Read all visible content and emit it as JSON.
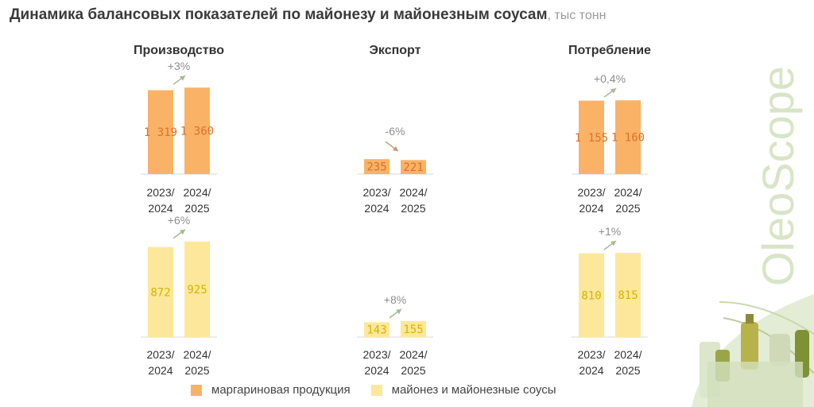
{
  "title": "Динамика балансовых показателей по майонезу и майонезным соусам",
  "title_unit": ", тыс тонн",
  "logo_text": "OleoScope",
  "legend": [
    {
      "label": "маргариновая продукция",
      "color": "#f9b266"
    },
    {
      "label": "майонез и майонезные соусы",
      "color": "#fde79a"
    }
  ],
  "chart_data": [
    {
      "type": "bar",
      "title": "Производство",
      "series": [
        {
          "name": "маргариновая продукция",
          "values": [
            1319,
            1360
          ],
          "labels": [
            "1 319",
            "1 360"
          ]
        }
      ],
      "categories": [
        "2023/ 2024",
        "2024/ 2025"
      ],
      "change": "+3%"
    },
    {
      "type": "bar",
      "title": "Экспорт",
      "series": [
        {
          "name": "маргариновая продукция",
          "values": [
            235,
            221
          ],
          "labels": [
            "235",
            "221"
          ]
        }
      ],
      "categories": [
        "2023/ 2024",
        "2024/ 2025"
      ],
      "change": "-6%"
    },
    {
      "type": "bar",
      "title": "Потребление",
      "series": [
        {
          "name": "маргариновая продукция",
          "values": [
            1155,
            1160
          ],
          "labels": [
            "1 155",
            "1 160"
          ]
        }
      ],
      "categories": [
        "2023/ 2024",
        "2024/ 2025"
      ],
      "change": "+0,4%"
    },
    {
      "type": "bar",
      "title": "",
      "series": [
        {
          "name": "майонез и майонезные соусы",
          "values": [
            872,
            925
          ],
          "labels": [
            "872",
            "925"
          ]
        }
      ],
      "categories": [
        "2023/ 2024",
        "2024/ 2025"
      ],
      "change": "+6%"
    },
    {
      "type": "bar",
      "title": "",
      "series": [
        {
          "name": "майонез и майонезные соусы",
          "values": [
            143,
            155
          ],
          "labels": [
            "143",
            "155"
          ]
        }
      ],
      "categories": [
        "2023/ 2024",
        "2024/ 2025"
      ],
      "change": "+8%"
    },
    {
      "type": "bar",
      "title": "",
      "series": [
        {
          "name": "майонез и майонезные соусы",
          "values": [
            810,
            815
          ],
          "labels": [
            "810",
            "815"
          ]
        }
      ],
      "categories": [
        "2023/ 2024",
        "2024/ 2025"
      ],
      "change": "+1%"
    }
  ],
  "colors": {
    "orange_bar": "#f9b266",
    "orange_label": "#d9722a",
    "yellow_bar": "#fde79a",
    "yellow_label": "#d6b300",
    "up_arrow": "#a5b892",
    "down_arrow": "#c59a72",
    "logo": "#d7e5c6"
  }
}
